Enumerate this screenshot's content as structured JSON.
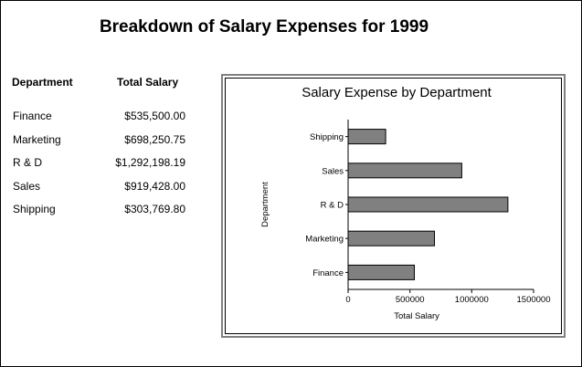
{
  "page": {
    "title": "Breakdown of Salary Expenses for 1999"
  },
  "table": {
    "headers": {
      "department": "Department",
      "total_salary": "Total Salary"
    },
    "rows": [
      {
        "department": "Finance",
        "total_salary": "$535,500.00"
      },
      {
        "department": "Marketing",
        "total_salary": "$698,250.75"
      },
      {
        "department": "R & D",
        "total_salary": "$1,292,198.19"
      },
      {
        "department": "Sales",
        "total_salary": "$919,428.00"
      },
      {
        "department": "Shipping",
        "total_salary": "$303,769.80"
      }
    ]
  },
  "chart_data": {
    "type": "bar",
    "orientation": "horizontal",
    "title": "Salary Expense by Department",
    "xlabel": "Total Salary",
    "ylabel": "Department",
    "categories": [
      "Finance",
      "Marketing",
      "R & D",
      "Sales",
      "Shipping"
    ],
    "values": [
      535500.0,
      698250.75,
      1292198.19,
      919428.0,
      303769.8
    ],
    "xlim": [
      0,
      1500000
    ],
    "xticks": [
      0,
      500000,
      1000000,
      1500000
    ],
    "xtick_labels": [
      "0",
      "500000",
      "1000000",
      "1500000"
    ],
    "grid": false,
    "bar_color": "#808080",
    "bar_edge_color": "#000000"
  }
}
